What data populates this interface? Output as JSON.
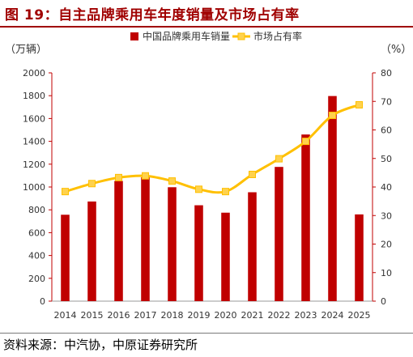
{
  "figure": {
    "title": "图 19：自主品牌乘用车年度销量及市场占有率",
    "source": "资料来源：中汽协，中原证券研究所"
  },
  "chart_data": {
    "type": "bar",
    "categories": [
      "2014",
      "2015",
      "2016",
      "2017",
      "2018",
      "2019",
      "2020",
      "2021",
      "2022",
      "2023",
      "2024",
      "2025"
    ],
    "series": [
      {
        "name": "中国品牌乘用车销量",
        "type": "bar",
        "axis": "left",
        "values": [
          757,
          873,
          1053,
          1085,
          998,
          840,
          775,
          954,
          1176,
          1460,
          1797,
          760
        ]
      },
      {
        "name": "市场占有率",
        "type": "line",
        "axis": "right",
        "values": [
          38.4,
          41.2,
          43.3,
          43.9,
          42.1,
          39.2,
          38.4,
          44.4,
          49.9,
          56.0,
          65.1,
          68.8
        ]
      }
    ],
    "ylabel_left": "（万辆）",
    "ylabel_right": "（%）",
    "ylim_left": [
      0,
      2000
    ],
    "yticks_left": [
      "0",
      "200",
      "400",
      "600",
      "800",
      "1000",
      "1200",
      "1400",
      "1600",
      "1800",
      "2000"
    ],
    "ylim_right": [
      0,
      80
    ],
    "yticks_right": [
      "0",
      "10",
      "20",
      "30",
      "40",
      "50",
      "60",
      "70",
      "80"
    ],
    "legend_position": "top",
    "grid": false,
    "colors": {
      "bar": "#c00000",
      "line": "#ffc000",
      "marker_fill": "#ffd24d",
      "axis": "#c00000"
    }
  }
}
